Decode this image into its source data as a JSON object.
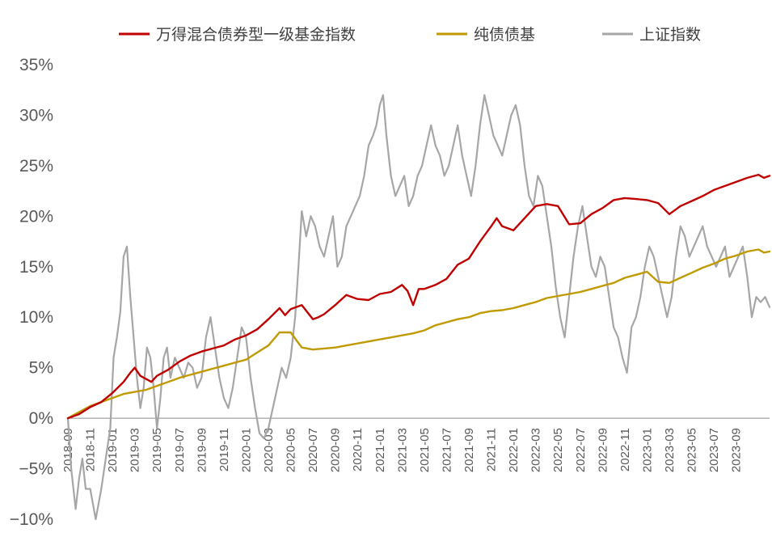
{
  "chart_data": {
    "type": "line",
    "title": "",
    "xlabel": "",
    "ylabel": "",
    "ylim": [
      -10,
      35
    ],
    "y_ticks": [
      -10,
      -5,
      0,
      5,
      10,
      15,
      20,
      25,
      30,
      35
    ],
    "y_tick_labels": [
      "−10%",
      "−5%",
      "0%",
      "5%",
      "10%",
      "15%",
      "20%",
      "25%",
      "30%",
      "35%"
    ],
    "x_tick_labels": [
      "2018-09",
      "2018-11",
      "2019-01",
      "2019-03",
      "2019-05",
      "2019-07",
      "2019-09",
      "2019-11",
      "2020-01",
      "2020-03",
      "2020-05",
      "2020-07",
      "2020-09",
      "2020-11",
      "2021-01",
      "2021-03",
      "2021-05",
      "2021-07",
      "2021-09",
      "2021-11",
      "2022-01",
      "2022-03",
      "2022-05",
      "2022-07",
      "2022-09",
      "2022-11",
      "2023-01",
      "2023-03",
      "2023-05",
      "2023-07",
      "2023-09"
    ],
    "legend": [
      "万得混合债券型一级基金指数",
      "纯债债基",
      "上证指数"
    ],
    "legend_position": "top",
    "series": [
      {
        "name": "万得混合债券型一级基金指数",
        "color": "#c00000",
        "points": [
          [
            0,
            0
          ],
          [
            1,
            0.4
          ],
          [
            2,
            1.1
          ],
          [
            3,
            1.6
          ],
          [
            4,
            2.5
          ],
          [
            5,
            3.6
          ],
          [
            5.6,
            4.5
          ],
          [
            6,
            5
          ],
          [
            6.5,
            4.2
          ],
          [
            7,
            3.9
          ],
          [
            7.5,
            3.6
          ],
          [
            8,
            4.2
          ],
          [
            9,
            4.8
          ],
          [
            10,
            5.6
          ],
          [
            11,
            6.2
          ],
          [
            12,
            6.6
          ],
          [
            13,
            6.9
          ],
          [
            14,
            7.2
          ],
          [
            15,
            7.8
          ],
          [
            16,
            8.2
          ],
          [
            17,
            8.8
          ],
          [
            18,
            9.8
          ],
          [
            19,
            10.9
          ],
          [
            19.5,
            10.2
          ],
          [
            20,
            10.8
          ],
          [
            21,
            11.2
          ],
          [
            21.5,
            10.5
          ],
          [
            22,
            9.8
          ],
          [
            22.5,
            10
          ],
          [
            23,
            10.3
          ],
          [
            24,
            11.2
          ],
          [
            25,
            12.2
          ],
          [
            26,
            11.8
          ],
          [
            27,
            11.7
          ],
          [
            28,
            12.3
          ],
          [
            29,
            12.5
          ],
          [
            30,
            13.2
          ],
          [
            30.5,
            12.6
          ],
          [
            31,
            11.2
          ],
          [
            31.5,
            12.8
          ],
          [
            32,
            12.8
          ],
          [
            33,
            13.2
          ],
          [
            34,
            13.8
          ],
          [
            35,
            15.2
          ],
          [
            36,
            15.8
          ],
          [
            37,
            17.5
          ],
          [
            38,
            19
          ],
          [
            38.5,
            19.8
          ],
          [
            39,
            19
          ],
          [
            40,
            18.6
          ],
          [
            41,
            19.8
          ],
          [
            42,
            21
          ],
          [
            43,
            21.2
          ],
          [
            44,
            21
          ],
          [
            45,
            19.2
          ],
          [
            46,
            19.3
          ],
          [
            47,
            20.2
          ],
          [
            48,
            20.8
          ],
          [
            49,
            21.6
          ],
          [
            50,
            21.8
          ],
          [
            51,
            21.7
          ],
          [
            52,
            21.6
          ],
          [
            53,
            21.3
          ],
          [
            54,
            20.2
          ],
          [
            55,
            21
          ],
          [
            56,
            21.5
          ],
          [
            57,
            22
          ],
          [
            58,
            22.6
          ],
          [
            59,
            23
          ],
          [
            60,
            23.4
          ],
          [
            61,
            23.8
          ],
          [
            62,
            24.1
          ],
          [
            62.5,
            23.8
          ],
          [
            63,
            24
          ]
        ]
      },
      {
        "name": "纯债债基",
        "color": "#c09a00",
        "points": [
          [
            0,
            0
          ],
          [
            1,
            0.6
          ],
          [
            2,
            1.2
          ],
          [
            3,
            1.6
          ],
          [
            4,
            2
          ],
          [
            5,
            2.4
          ],
          [
            6,
            2.6
          ],
          [
            7,
            2.8
          ],
          [
            8,
            3.2
          ],
          [
            9,
            3.6
          ],
          [
            10,
            4
          ],
          [
            11,
            4.3
          ],
          [
            12,
            4.6
          ],
          [
            13,
            4.9
          ],
          [
            14,
            5.2
          ],
          [
            15,
            5.5
          ],
          [
            16,
            5.8
          ],
          [
            17,
            6.5
          ],
          [
            18,
            7.2
          ],
          [
            19,
            8.5
          ],
          [
            20,
            8.5
          ],
          [
            21,
            7
          ],
          [
            22,
            6.8
          ],
          [
            23,
            6.9
          ],
          [
            24,
            7
          ],
          [
            25,
            7.2
          ],
          [
            26,
            7.4
          ],
          [
            27,
            7.6
          ],
          [
            28,
            7.8
          ],
          [
            29,
            8
          ],
          [
            30,
            8.2
          ],
          [
            31,
            8.4
          ],
          [
            32,
            8.7
          ],
          [
            33,
            9.2
          ],
          [
            34,
            9.5
          ],
          [
            35,
            9.8
          ],
          [
            36,
            10
          ],
          [
            37,
            10.4
          ],
          [
            38,
            10.6
          ],
          [
            39,
            10.7
          ],
          [
            40,
            10.9
          ],
          [
            41,
            11.2
          ],
          [
            42,
            11.5
          ],
          [
            43,
            11.9
          ],
          [
            44,
            12.1
          ],
          [
            45,
            12.3
          ],
          [
            46,
            12.5
          ],
          [
            47,
            12.8
          ],
          [
            48,
            13.1
          ],
          [
            49,
            13.4
          ],
          [
            50,
            13.9
          ],
          [
            51,
            14.2
          ],
          [
            52,
            14.5
          ],
          [
            53,
            13.5
          ],
          [
            54,
            13.4
          ],
          [
            55,
            13.9
          ],
          [
            56,
            14.4
          ],
          [
            57,
            14.9
          ],
          [
            58,
            15.3
          ],
          [
            59,
            15.8
          ],
          [
            60,
            16.1
          ],
          [
            61,
            16.5
          ],
          [
            62,
            16.7
          ],
          [
            62.5,
            16.4
          ],
          [
            63,
            16.5
          ]
        ]
      },
      {
        "name": "上证指数",
        "color": "#a6a6a6",
        "points": [
          [
            0,
            0
          ],
          [
            0.3,
            -5
          ],
          [
            0.7,
            -9
          ],
          [
            1,
            -6
          ],
          [
            1.3,
            -4
          ],
          [
            1.6,
            -7
          ],
          [
            2,
            -7
          ],
          [
            2.5,
            -10
          ],
          [
            3,
            -7
          ],
          [
            3.4,
            -4
          ],
          [
            3.8,
            -1
          ],
          [
            4.1,
            6
          ],
          [
            4.4,
            8
          ],
          [
            4.7,
            10.5
          ],
          [
            5,
            16
          ],
          [
            5.3,
            17
          ],
          [
            5.6,
            12
          ],
          [
            5.9,
            8
          ],
          [
            6.2,
            4
          ],
          [
            6.5,
            1
          ],
          [
            6.8,
            3
          ],
          [
            7.1,
            7
          ],
          [
            7.4,
            6
          ],
          [
            7.7,
            3
          ],
          [
            8,
            -1
          ],
          [
            8.3,
            2
          ],
          [
            8.6,
            6
          ],
          [
            8.9,
            7
          ],
          [
            9.2,
            4
          ],
          [
            9.6,
            6
          ],
          [
            10,
            5
          ],
          [
            10.4,
            4
          ],
          [
            10.8,
            5.5
          ],
          [
            11.2,
            5
          ],
          [
            11.6,
            3
          ],
          [
            12,
            4
          ],
          [
            12.4,
            8
          ],
          [
            12.8,
            10
          ],
          [
            13.2,
            7
          ],
          [
            13.6,
            4
          ],
          [
            14,
            2
          ],
          [
            14.4,
            1
          ],
          [
            14.8,
            3
          ],
          [
            15.2,
            6
          ],
          [
            15.6,
            9
          ],
          [
            16,
            8
          ],
          [
            16.4,
            4
          ],
          [
            16.8,
            1
          ],
          [
            17.2,
            -1.5
          ],
          [
            17.6,
            -2
          ],
          [
            18,
            -1
          ],
          [
            18.4,
            1
          ],
          [
            18.8,
            3
          ],
          [
            19.2,
            5
          ],
          [
            19.6,
            4
          ],
          [
            20,
            6
          ],
          [
            20.4,
            10
          ],
          [
            20.7,
            15
          ],
          [
            21,
            20.5
          ],
          [
            21.4,
            18
          ],
          [
            21.8,
            20
          ],
          [
            22.2,
            19
          ],
          [
            22.6,
            17
          ],
          [
            23,
            16
          ],
          [
            23.4,
            18
          ],
          [
            23.8,
            20
          ],
          [
            24.2,
            15
          ],
          [
            24.6,
            16
          ],
          [
            25,
            19
          ],
          [
            25.4,
            20
          ],
          [
            25.8,
            21
          ],
          [
            26.2,
            22
          ],
          [
            26.6,
            24
          ],
          [
            27,
            27
          ],
          [
            27.4,
            28
          ],
          [
            27.7,
            29
          ],
          [
            28,
            31
          ],
          [
            28.3,
            32
          ],
          [
            28.6,
            28
          ],
          [
            29,
            24
          ],
          [
            29.4,
            22
          ],
          [
            29.8,
            23
          ],
          [
            30.2,
            24
          ],
          [
            30.6,
            21
          ],
          [
            31,
            22
          ],
          [
            31.4,
            24
          ],
          [
            31.8,
            25
          ],
          [
            32.2,
            27
          ],
          [
            32.6,
            29
          ],
          [
            33,
            27
          ],
          [
            33.4,
            26
          ],
          [
            33.8,
            24
          ],
          [
            34.2,
            25
          ],
          [
            34.6,
            27
          ],
          [
            35,
            29
          ],
          [
            35.4,
            26
          ],
          [
            35.8,
            24
          ],
          [
            36.2,
            22
          ],
          [
            36.6,
            25
          ],
          [
            37,
            29
          ],
          [
            37.4,
            32
          ],
          [
            37.8,
            30
          ],
          [
            38.2,
            28
          ],
          [
            38.6,
            27
          ],
          [
            39,
            26
          ],
          [
            39.4,
            28
          ],
          [
            39.8,
            30
          ],
          [
            40.2,
            31
          ],
          [
            40.6,
            29
          ],
          [
            41,
            25
          ],
          [
            41.4,
            22
          ],
          [
            41.8,
            21
          ],
          [
            42.2,
            24
          ],
          [
            42.6,
            23
          ],
          [
            43,
            20
          ],
          [
            43.4,
            17
          ],
          [
            43.8,
            13
          ],
          [
            44.2,
            10
          ],
          [
            44.6,
            8
          ],
          [
            45,
            12
          ],
          [
            45.4,
            16
          ],
          [
            45.8,
            19
          ],
          [
            46.2,
            21
          ],
          [
            46.6,
            18
          ],
          [
            47,
            15
          ],
          [
            47.4,
            14
          ],
          [
            47.8,
            16
          ],
          [
            48.2,
            15
          ],
          [
            48.6,
            12
          ],
          [
            49,
            9
          ],
          [
            49.4,
            8
          ],
          [
            49.8,
            6
          ],
          [
            50.2,
            4.5
          ],
          [
            50.6,
            9
          ],
          [
            51,
            10
          ],
          [
            51.4,
            12
          ],
          [
            51.8,
            15
          ],
          [
            52.2,
            17
          ],
          [
            52.6,
            16
          ],
          [
            53,
            14
          ],
          [
            53.4,
            12
          ],
          [
            53.8,
            10
          ],
          [
            54.2,
            12
          ],
          [
            54.6,
            16
          ],
          [
            55,
            19
          ],
          [
            55.4,
            18
          ],
          [
            55.8,
            16
          ],
          [
            56.2,
            17
          ],
          [
            56.6,
            18
          ],
          [
            57,
            19
          ],
          [
            57.4,
            17
          ],
          [
            57.8,
            16
          ],
          [
            58.2,
            15
          ],
          [
            58.6,
            16
          ],
          [
            59,
            17
          ],
          [
            59.4,
            14
          ],
          [
            59.8,
            15
          ],
          [
            60.2,
            16
          ],
          [
            60.6,
            17
          ],
          [
            61,
            14
          ],
          [
            61.4,
            10
          ],
          [
            61.8,
            12
          ],
          [
            62.2,
            11.5
          ],
          [
            62.6,
            12
          ],
          [
            63,
            11
          ]
        ]
      }
    ]
  }
}
